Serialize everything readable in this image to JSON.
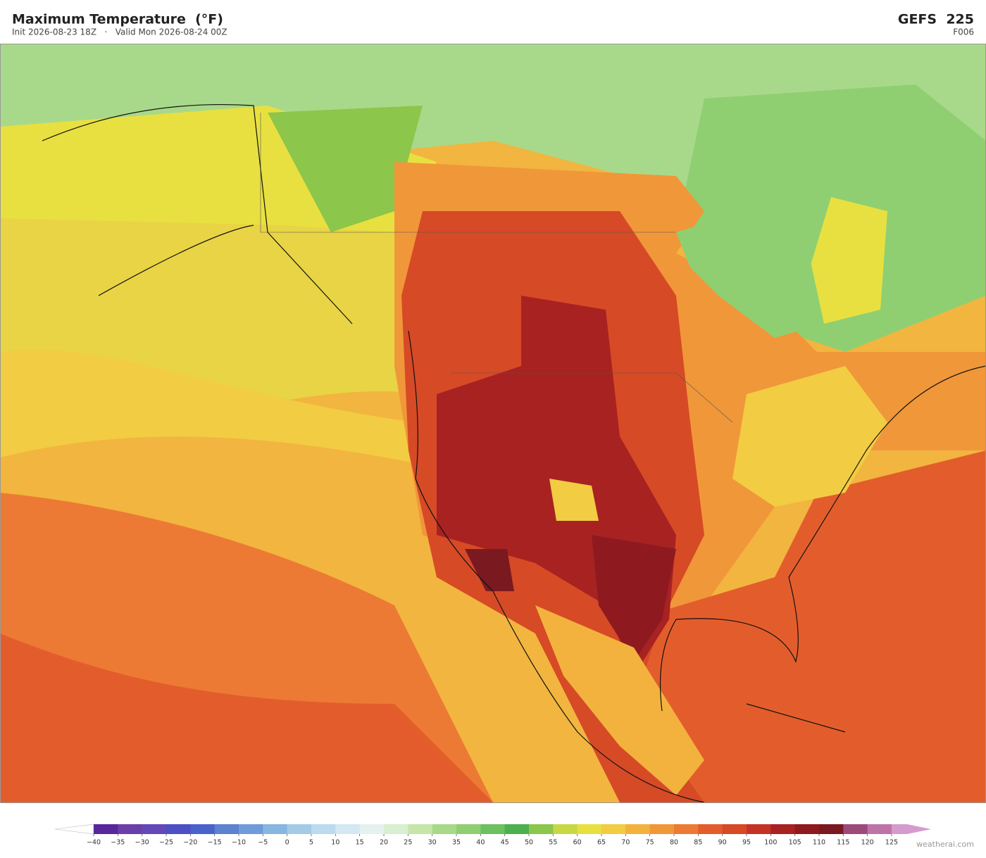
{
  "header": {
    "title": "Maximum Temperature  (°F)",
    "subtitle": "Init 2026-08-23 18Z   ·   Valid Mon 2026-08-24 00Z",
    "model": "GEFS  225",
    "forecast_hour": "F006"
  },
  "colorbar": {
    "ticks": [
      {
        "value": -40,
        "label": "−40"
      },
      {
        "value": -35,
        "label": "−35"
      },
      {
        "value": -30,
        "label": "−30"
      },
      {
        "value": -25,
        "label": "−25"
      },
      {
        "value": -20,
        "label": "−20"
      },
      {
        "value": -15,
        "label": "−15"
      },
      {
        "value": -10,
        "label": "−10"
      },
      {
        "value": -5,
        "label": "−5"
      },
      0,
      5,
      10,
      15,
      20,
      25,
      30,
      35,
      40,
      45,
      50,
      55,
      60,
      65,
      70,
      75,
      80,
      85,
      90,
      95,
      100,
      105,
      110,
      115,
      120,
      125
    ],
    "colors": [
      "#58279a",
      "#6b3fa8",
      "#6448b8",
      "#4d4fc4",
      "#4a62cc",
      "#5c82d0",
      "#6f9cd8",
      "#87b6e0",
      "#a3cbe8",
      "#bcdbee",
      "#d3e8f2",
      "#e4f1ee",
      "#d8efd0",
      "#c5e6a8",
      "#a8d98a",
      "#8fcf72",
      "#6cc060",
      "#4caf50",
      "#8cc64a",
      "#c8d845",
      "#e8e040",
      "#f2cc42",
      "#f3b23e",
      "#f0973a",
      "#ec7a34",
      "#e35d2c",
      "#d64a26",
      "#c43426",
      "#a82222",
      "#8e1a1f",
      "#7a1a20",
      "#9c4a7a",
      "#bf74a8"
    ],
    "under_color": "#ffffff",
    "over_color": "#d49ccd"
  },
  "watermark": "weatherai.com"
}
